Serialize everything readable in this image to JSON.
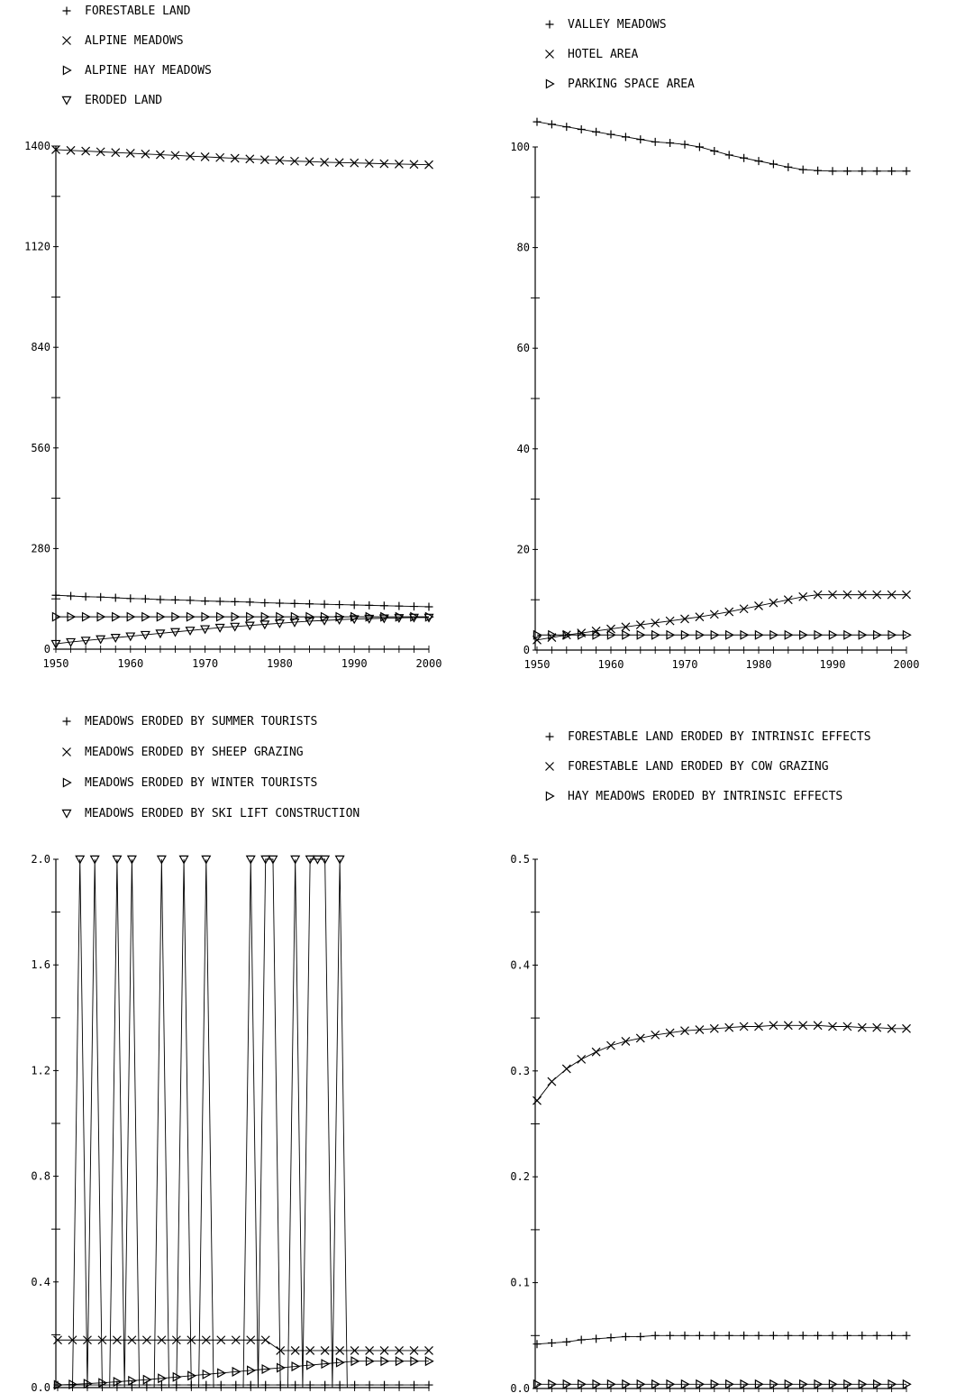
{
  "chart_data": [
    {
      "type": "line",
      "x": [
        1950,
        1952,
        1954,
        1956,
        1958,
        1960,
        1962,
        1964,
        1966,
        1968,
        1970,
        1972,
        1974,
        1976,
        1978,
        1980,
        1982,
        1984,
        1986,
        1988,
        1990,
        1992,
        1994,
        1996,
        1998,
        2000
      ],
      "xticks": [
        "1950",
        "1960",
        "1970",
        "1980",
        "1990",
        "2000"
      ],
      "yticks": [
        "0",
        "280",
        "560",
        "840",
        "1120",
        "1400"
      ],
      "ylim": [
        0,
        1400
      ],
      "legend_position": "top-left",
      "series": [
        {
          "name": "FORESTABLE LAND",
          "marker": "+",
          "values": [
            150,
            148,
            146,
            145,
            143,
            141,
            140,
            138,
            137,
            136,
            134,
            133,
            132,
            131,
            129,
            128,
            127,
            126,
            125,
            124,
            123,
            122,
            121,
            120,
            119,
            118
          ]
        },
        {
          "name": "ALPINE MEADOWS",
          "marker": "x",
          "values": [
            1390,
            1388,
            1386,
            1384,
            1382,
            1380,
            1378,
            1376,
            1374,
            1372,
            1370,
            1368,
            1366,
            1364,
            1362,
            1360,
            1358,
            1357,
            1355,
            1354,
            1353,
            1352,
            1351,
            1350,
            1349,
            1348
          ]
        },
        {
          "name": "ALPINE HAY MEADOWS",
          "marker": "tri-right",
          "values": [
            90,
            90,
            90,
            90,
            90,
            90,
            90,
            90,
            90,
            90,
            90,
            90,
            90,
            90,
            90,
            90,
            90,
            90,
            90,
            90,
            90,
            90,
            90,
            90,
            90,
            90
          ]
        },
        {
          "name": "ERODED LAND",
          "marker": "tri-down",
          "values": [
            15,
            20,
            24,
            28,
            32,
            36,
            40,
            44,
            48,
            52,
            56,
            60,
            63,
            66,
            69,
            72,
            75,
            78,
            80,
            82,
            84,
            85,
            86,
            87,
            88,
            88
          ]
        }
      ]
    },
    {
      "type": "line",
      "x": [
        1950,
        1952,
        1954,
        1956,
        1958,
        1960,
        1962,
        1964,
        1966,
        1968,
        1970,
        1972,
        1974,
        1976,
        1978,
        1980,
        1982,
        1984,
        1986,
        1988,
        1990,
        1992,
        1994,
        1996,
        1998,
        2000
      ],
      "xticks": [
        "1950",
        "1960",
        "1970",
        "1980",
        "1990",
        "2000"
      ],
      "yticks": [
        "0",
        "20",
        "40",
        "60",
        "80",
        "100"
      ],
      "ylim": [
        0,
        100
      ],
      "legend_position": "top-left",
      "series": [
        {
          "name": "VALLEY MEADOWS",
          "marker": "+",
          "values": [
            105,
            104.5,
            104,
            103.5,
            103,
            102.5,
            102,
            101.5,
            101,
            100.8,
            100.5,
            100,
            99.2,
            98.4,
            97.8,
            97.2,
            96.6,
            96,
            95.5,
            95.3,
            95.2,
            95.2,
            95.2,
            95.2,
            95.2,
            95.2
          ]
        },
        {
          "name": "HOTEL AREA",
          "marker": "x",
          "values": [
            2,
            2.5,
            3,
            3.4,
            3.8,
            4.2,
            4.6,
            5,
            5.4,
            5.8,
            6.2,
            6.6,
            7.1,
            7.6,
            8.2,
            8.8,
            9.4,
            10,
            10.6,
            11,
            11,
            11,
            11,
            11,
            11,
            11
          ]
        },
        {
          "name": "PARKING SPACE AREA",
          "marker": "tri-right",
          "values": [
            3,
            3,
            3,
            3,
            3,
            3,
            3,
            3,
            3,
            3,
            3,
            3,
            3,
            3,
            3,
            3,
            3,
            3,
            3,
            3,
            3,
            3,
            3,
            3,
            3,
            3
          ]
        }
      ]
    },
    {
      "type": "line",
      "x": [
        1950,
        1952,
        1954,
        1956,
        1958,
        1960,
        1962,
        1964,
        1966,
        1968,
        1970,
        1972,
        1974,
        1976,
        1978,
        1980,
        1982,
        1984,
        1986,
        1988,
        1990,
        1992,
        1994,
        1996,
        1998,
        2000
      ],
      "xticks": [
        "1950",
        "1960",
        "1970",
        "1980",
        "1990",
        "2000"
      ],
      "yticks": [
        "0.0",
        "0.4",
        "0.8",
        "1.2",
        "1.6",
        "2.0"
      ],
      "ylim": [
        0,
        2
      ],
      "legend_position": "top-left",
      "series": [
        {
          "name": "MEADOWS ERODED BY SUMMER TOURISTS",
          "marker": "+",
          "values": [
            0.01,
            0.01,
            0.01,
            0.01,
            0.01,
            0.01,
            0.01,
            0.01,
            0.01,
            0.01,
            0.01,
            0.01,
            0.01,
            0.01,
            0.01,
            0.01,
            0.01,
            0.01,
            0.01,
            0.01,
            0.01,
            0.01,
            0.01,
            0.01,
            0.01,
            0.01
          ]
        },
        {
          "name": "MEADOWS ERODED BY SHEEP GRAZING",
          "marker": "x",
          "values": [
            0.18,
            0.18,
            0.18,
            0.18,
            0.18,
            0.18,
            0.18,
            0.18,
            0.18,
            0.18,
            0.18,
            0.18,
            0.18,
            0.18,
            0.18,
            0.14,
            0.14,
            0.14,
            0.14,
            0.14,
            0.14,
            0.14,
            0.14,
            0.14,
            0.14,
            0.14
          ]
        },
        {
          "name": "MEADOWS ERODED BY WINTER TOURISTS",
          "marker": "tri-right",
          "values": [
            0.01,
            0.012,
            0.015,
            0.018,
            0.022,
            0.026,
            0.03,
            0.035,
            0.04,
            0.045,
            0.05,
            0.055,
            0.06,
            0.065,
            0.07,
            0.075,
            0.08,
            0.085,
            0.09,
            0.095,
            0.1,
            0.1,
            0.1,
            0.1,
            0.1,
            0.1
          ]
        },
        {
          "name": "MEADOWS ERODED BY SKI LIFT CONSTRUCTION",
          "marker": "tri-down",
          "x": [
            1950,
            1951,
            1952,
            1953,
            1954,
            1955,
            1956,
            1957,
            1958,
            1959,
            1960,
            1961,
            1962,
            1963,
            1964,
            1965,
            1966,
            1967,
            1968,
            1969,
            1970,
            1971,
            1972,
            1973,
            1974,
            1975,
            1976,
            1977,
            1978,
            1979,
            1980,
            1981,
            1982,
            1983,
            1984,
            1985,
            1986,
            1987,
            1988,
            1989,
            1990,
            1991,
            1992,
            1993,
            1994,
            1995,
            1996,
            1997,
            1998,
            1999,
            2000
          ],
          "values": [
            0,
            0,
            0,
            2,
            0,
            2,
            0,
            0,
            2,
            0,
            2,
            0,
            0,
            0,
            2,
            0,
            0,
            2,
            0,
            0,
            2,
            0,
            0,
            0,
            0,
            0,
            2,
            0,
            2,
            2,
            0,
            0,
            2,
            0,
            2,
            2,
            2,
            0,
            2,
            0,
            0,
            0,
            0,
            0,
            0,
            0,
            0,
            0,
            0,
            0,
            0
          ]
        }
      ]
    },
    {
      "type": "line",
      "x": [
        1950,
        1952,
        1954,
        1956,
        1958,
        1960,
        1962,
        1964,
        1966,
        1968,
        1970,
        1972,
        1974,
        1976,
        1978,
        1980,
        1982,
        1984,
        1986,
        1988,
        1990,
        1992,
        1994,
        1996,
        1998,
        2000
      ],
      "xticks": [
        "1950",
        "1960",
        "1970",
        "1980",
        "1990",
        "2000"
      ],
      "yticks": [
        "0.0",
        "0.1",
        "0.2",
        "0.3",
        "0.4",
        "0.5"
      ],
      "ylim": [
        0,
        0.5
      ],
      "legend_position": "top-left",
      "series": [
        {
          "name": "FORESTABLE LAND ERODED BY INTRINSIC EFFECTS",
          "marker": "+",
          "values": [
            0.042,
            0.043,
            0.044,
            0.046,
            0.047,
            0.048,
            0.049,
            0.049,
            0.05,
            0.05,
            0.05,
            0.05,
            0.05,
            0.05,
            0.05,
            0.05,
            0.05,
            0.05,
            0.05,
            0.05,
            0.05,
            0.05,
            0.05,
            0.05,
            0.05,
            0.05
          ]
        },
        {
          "name": "FORESTABLE LAND ERODED BY COW GRAZING",
          "marker": "x",
          "values": [
            0.272,
            0.29,
            0.302,
            0.311,
            0.318,
            0.324,
            0.328,
            0.331,
            0.334,
            0.336,
            0.338,
            0.339,
            0.34,
            0.341,
            0.342,
            0.342,
            0.343,
            0.343,
            0.343,
            0.343,
            0.342,
            0.342,
            0.341,
            0.341,
            0.34,
            0.34
          ]
        },
        {
          "name": "HAY MEADOWS ERODED BY INTRINSIC EFFECTS",
          "marker": "tri-right",
          "values": [
            0.004,
            0.004,
            0.004,
            0.004,
            0.004,
            0.004,
            0.004,
            0.004,
            0.004,
            0.004,
            0.004,
            0.004,
            0.004,
            0.004,
            0.004,
            0.004,
            0.004,
            0.004,
            0.004,
            0.004,
            0.004,
            0.004,
            0.004,
            0.004,
            0.004,
            0.004
          ]
        }
      ]
    }
  ]
}
